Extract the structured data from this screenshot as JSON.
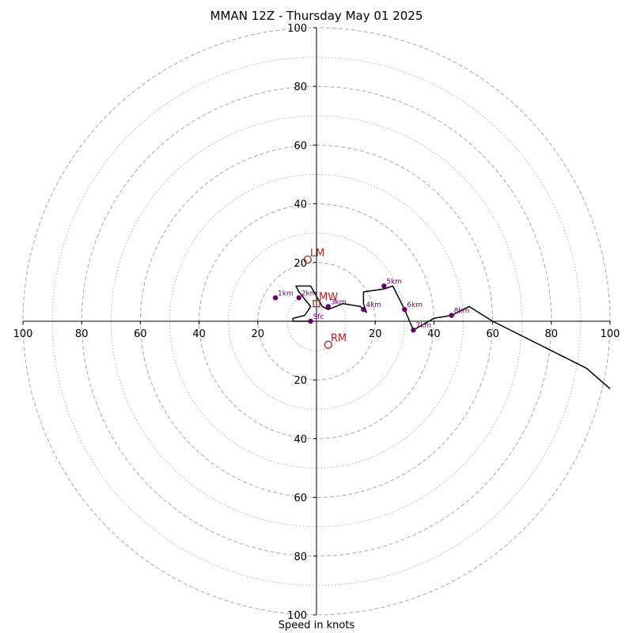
{
  "title": "MMAN 12Z - Thursday May 01 2025",
  "chart_data": {
    "type": "line",
    "plot_kind": "hodograph",
    "title": "MMAN 12Z - Thursday May 01 2025",
    "xlabel": "Speed in knots",
    "ylabel": "",
    "xlim": [
      -100,
      100
    ],
    "ylim": [
      -100,
      100
    ],
    "ring_labels": [
      "20",
      "40",
      "60",
      "80",
      "100"
    ],
    "rings_major": [
      20,
      40,
      60,
      80,
      100
    ],
    "rings_minor": [
      10,
      30,
      50,
      70,
      90
    ],
    "grid": true,
    "colors": {
      "trace": "#000000",
      "markers": "#6a006a",
      "motion": "#b22222",
      "grid": "#b0b0b0"
    },
    "hodograph": {
      "x": [
        -2,
        -8,
        -8,
        -4,
        -2,
        -6,
        -7,
        -2,
        2,
        4,
        9,
        15,
        17,
        16,
        16,
        23,
        26,
        30,
        33,
        40,
        46,
        52,
        60,
        92,
        100
      ],
      "y": [
        0,
        0,
        1,
        2,
        5,
        10,
        12,
        12,
        5,
        4,
        6,
        5,
        3,
        6,
        10,
        11,
        12,
        4,
        -3,
        1,
        2,
        5,
        0,
        -16,
        -23
      ]
    },
    "height_markers": [
      {
        "label": "Sfc",
        "x": -2,
        "y": 0
      },
      {
        "label": "1km",
        "x": -14,
        "y": 8
      },
      {
        "label": "2km",
        "x": -6,
        "y": 8
      },
      {
        "label": "3km",
        "x": 4,
        "y": 5
      },
      {
        "label": "4km",
        "x": 16,
        "y": 4
      },
      {
        "label": "5km",
        "x": 23,
        "y": 12
      },
      {
        "label": "6km",
        "x": 30,
        "y": 4
      },
      {
        "label": "7km",
        "x": 33,
        "y": -3
      },
      {
        "label": "8km",
        "x": 46,
        "y": 2
      }
    ],
    "storm_motion": [
      {
        "label": "LM",
        "x": -3,
        "y": 21,
        "marker": "circle"
      },
      {
        "label": "MW",
        "x": 0,
        "y": 6,
        "marker": "square"
      },
      {
        "label": "RM",
        "x": 4,
        "y": -8,
        "marker": "circle"
      }
    ]
  }
}
